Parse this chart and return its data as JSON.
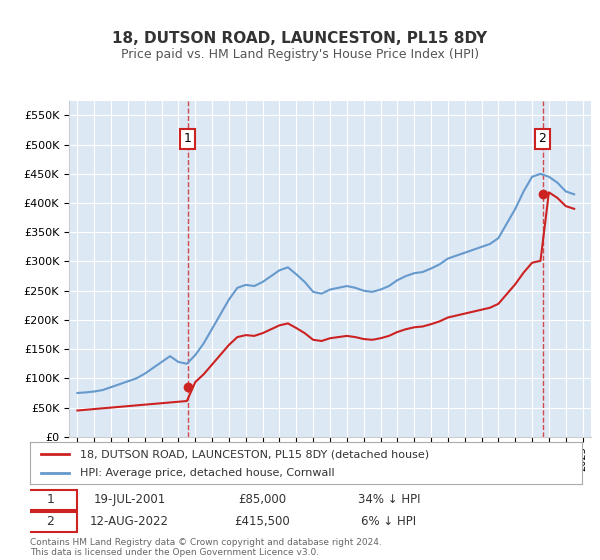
{
  "title": "18, DUTSON ROAD, LAUNCESTON, PL15 8DY",
  "subtitle": "Price paid vs. HM Land Registry's House Price Index (HPI)",
  "legend_line1": "18, DUTSON ROAD, LAUNCESTON, PL15 8DY (detached house)",
  "legend_line2": "HPI: Average price, detached house, Cornwall",
  "transaction1_date": "19-JUL-2001",
  "transaction1_price": 85000,
  "transaction1_label": "34% ↓ HPI",
  "transaction2_date": "12-AUG-2022",
  "transaction2_price": 415500,
  "transaction2_label": "6% ↓ HPI",
  "footnote": "Contains HM Land Registry data © Crown copyright and database right 2024.\nThis data is licensed under the Open Government Licence v3.0.",
  "hpi_line_color": "#6699cc",
  "price_line_color": "#cc2222",
  "dashed_line_color": "#cc2222",
  "background_color": "#dde8f5",
  "ylim": [
    0,
    575000
  ],
  "ytick_values": [
    0,
    50000,
    100000,
    150000,
    200000,
    250000,
    300000,
    350000,
    400000,
    450000,
    500000,
    550000
  ],
  "ytick_labels": [
    "£0",
    "£50K",
    "£100K",
    "£150K",
    "£200K",
    "£250K",
    "£300K",
    "£350K",
    "£400K",
    "£450K",
    "£500K",
    "£550K"
  ]
}
